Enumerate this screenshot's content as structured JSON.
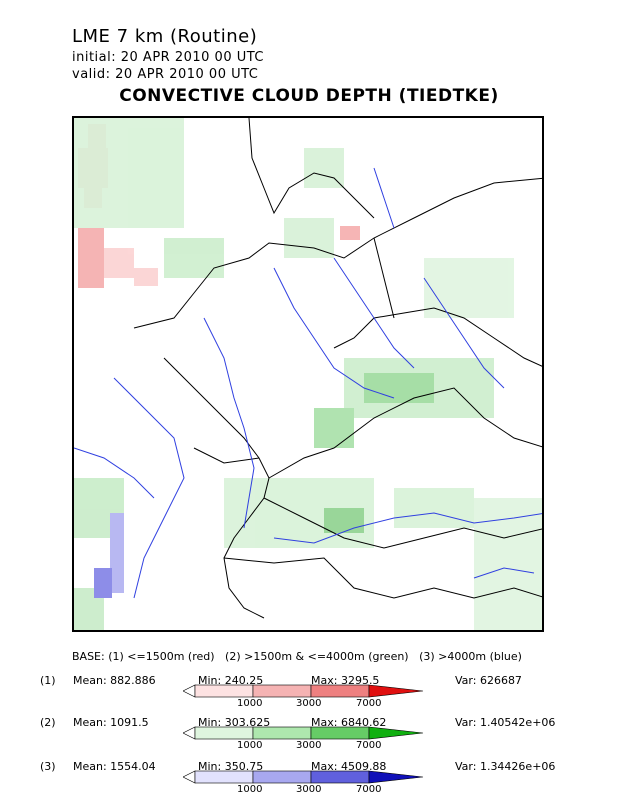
{
  "header": {
    "title": "LME 7 km (Routine)",
    "initial": "initial:  20 APR 2010    00 UTC",
    "valid": "valid:   20 APR 2010    00 UTC",
    "main_title": "CONVECTIVE CLOUD DEPTH (TIEDTKE)"
  },
  "base_text": "BASE: (1) <=1500m (red)   (2) >1500m & <=4000m (green)   (3) >4000m (blue)",
  "stats": [
    {
      "idx": "(1)",
      "mean": "Mean: 882.886",
      "min": "Min: 240.25",
      "max": "Max: 3295.5",
      "var": "Var: 626687",
      "colors": [
        "#fde2e2",
        "#f5b3b3",
        "#ee8080",
        "#e01010"
      ],
      "ticks": [
        "1000",
        "3000",
        "7000"
      ]
    },
    {
      "idx": "(2)",
      "mean": "Mean: 1091.5",
      "min": "Min: 303.625",
      "max": "Max: 6840.62",
      "var": "Var: 1.40542e+06",
      "colors": [
        "#dff5df",
        "#aee8ae",
        "#66cc66",
        "#10b010"
      ],
      "ticks": [
        "1000",
        "3000",
        "7000"
      ]
    },
    {
      "idx": "(3)",
      "mean": "Mean: 1554.04",
      "min": "Min: 350.75",
      "max": "Max: 4509.88",
      "var": "Var: 1.34426e+06",
      "colors": [
        "#e2e2fd",
        "#a8a8f0",
        "#6060dd",
        "#1010b8"
      ],
      "ticks": [
        "1000",
        "3000",
        "7000"
      ]
    }
  ]
}
